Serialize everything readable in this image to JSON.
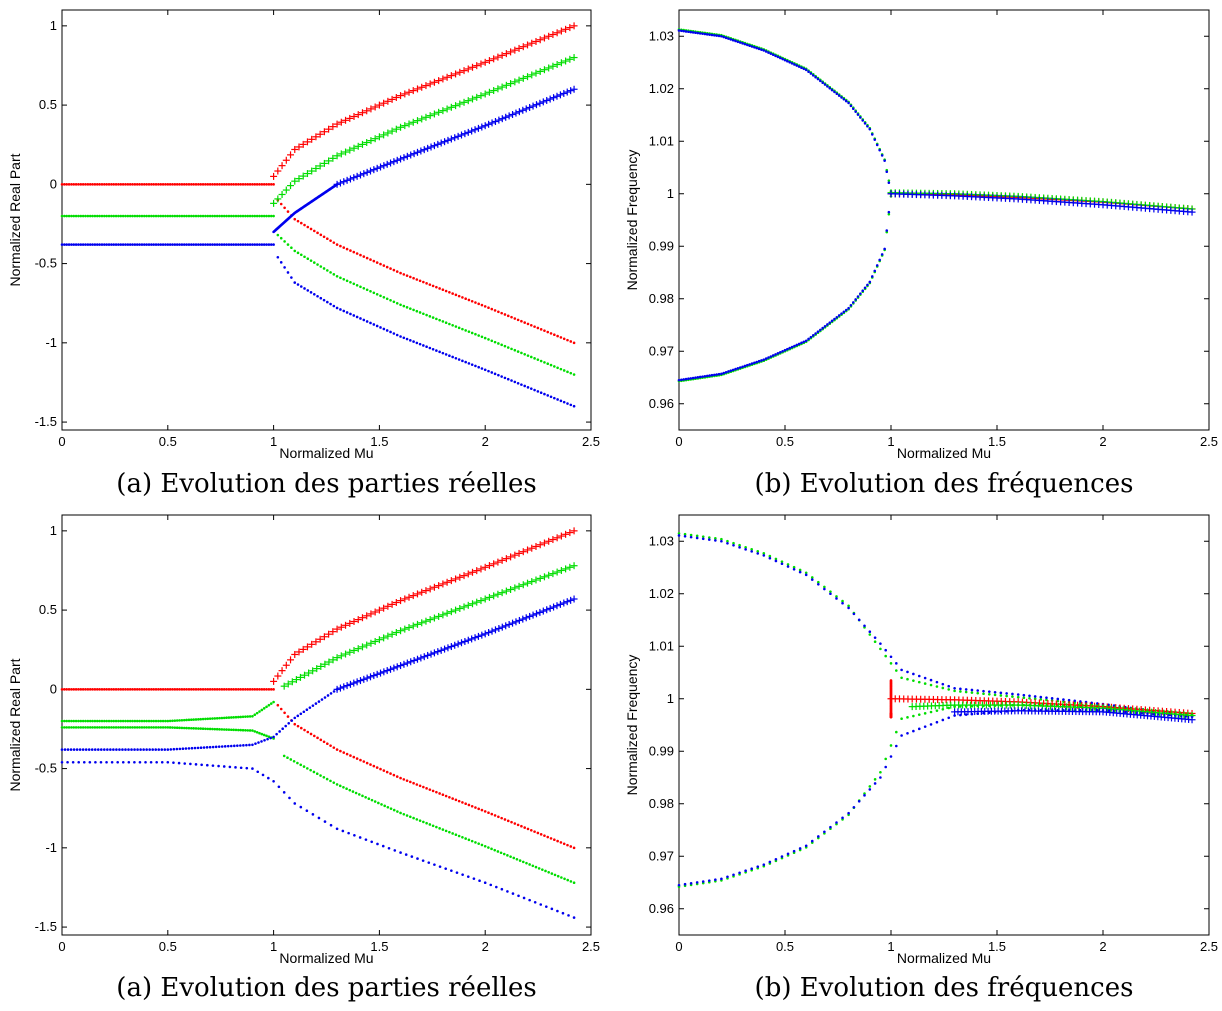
{
  "chart_data": [
    {
      "type": "scatter",
      "caption": "(a) Evolution des parties réelles",
      "xlabel": "Normalized Mu",
      "ylabel": "Normalized Real Part",
      "xlim": [
        0,
        2.5
      ],
      "ylim": [
        -1.55,
        1.1
      ],
      "xticks": [
        0,
        0.5,
        1,
        1.5,
        2,
        2.5
      ],
      "xtick_labels": [
        "0",
        "0.5",
        "1",
        "1.5",
        "2",
        "2.5"
      ],
      "yticks": [
        -1.5,
        -1,
        -0.5,
        0,
        0.5,
        1
      ],
      "ytick_labels": [
        "-1.5",
        "-1",
        "-0.5",
        "0",
        "0.5",
        "1"
      ],
      "grid": false,
      "series": [
        {
          "color": "#ff0000",
          "branches": [
            {
              "marker": "dot",
              "x": [
                0,
                0.5,
                1.0
              ],
              "y": [
                0,
                0,
                0
              ]
            },
            {
              "marker": "plus",
              "x": [
                1.0,
                1.1,
                1.3,
                1.6,
                2.0,
                2.42
              ],
              "y": [
                0.05,
                0.22,
                0.38,
                0.56,
                0.77,
                1.0
              ]
            },
            {
              "marker": "dot",
              "x": [
                1.02,
                1.1,
                1.3,
                1.6,
                2.0,
                2.42
              ],
              "y": [
                -0.1,
                -0.22,
                -0.38,
                -0.56,
                -0.77,
                -1.0
              ]
            }
          ]
        },
        {
          "color": "#00dd00",
          "branches": [
            {
              "marker": "dot",
              "x": [
                0,
                0.5,
                1.0
              ],
              "y": [
                -0.2,
                -0.2,
                -0.2
              ]
            },
            {
              "marker": "plus",
              "x": [
                1.0,
                1.1,
                1.3,
                1.6,
                2.0,
                2.42
              ],
              "y": [
                -0.12,
                0.02,
                0.18,
                0.36,
                0.57,
                0.8
              ]
            },
            {
              "marker": "dot",
              "x": [
                1.02,
                1.1,
                1.3,
                1.6,
                2.0,
                2.42
              ],
              "y": [
                -0.32,
                -0.42,
                -0.58,
                -0.76,
                -0.97,
                -1.2
              ]
            }
          ]
        },
        {
          "color": "#0000ee",
          "branches": [
            {
              "marker": "dot",
              "x": [
                0,
                0.5,
                1.0
              ],
              "y": [
                -0.38,
                -0.38,
                -0.38
              ]
            },
            {
              "marker": "dot",
              "x": [
                1.0,
                1.1,
                1.3
              ],
              "y": [
                -0.3,
                -0.18,
                0.0
              ]
            },
            {
              "marker": "plus",
              "x": [
                1.3,
                1.6,
                2.0,
                2.42
              ],
              "y": [
                0.0,
                0.16,
                0.37,
                0.6
              ]
            },
            {
              "marker": "dot",
              "x": [
                1.02,
                1.1,
                1.3,
                1.6,
                2.0,
                2.42
              ],
              "y": [
                -0.46,
                -0.62,
                -0.78,
                -0.96,
                -1.17,
                -1.4
              ]
            }
          ]
        }
      ]
    },
    {
      "type": "scatter",
      "caption": "(b) Evolution des fréquences",
      "xlabel": "Normalized Mu",
      "ylabel": "Normalized Frequency",
      "xlim": [
        0,
        2.5
      ],
      "ylim": [
        0.955,
        1.035
      ],
      "xticks": [
        0,
        0.5,
        1,
        1.5,
        2,
        2.5
      ],
      "xtick_labels": [
        "0",
        "0.5",
        "1",
        "1.5",
        "2",
        "2.5"
      ],
      "yticks": [
        0.96,
        0.97,
        0.98,
        0.99,
        1.0,
        1.01,
        1.02,
        1.03
      ],
      "ytick_labels": [
        "0.96",
        "0.97",
        "0.98",
        "0.99",
        "1",
        "1.01",
        "1.02",
        "1.03"
      ],
      "grid": false,
      "series": [
        {
          "color": "#00dd00",
          "branches": [
            {
              "marker": "dot",
              "x": [
                0,
                0.2,
                0.4,
                0.6,
                0.8,
                0.9,
                0.97,
                1.0
              ],
              "y": [
                1.0313,
                1.0302,
                1.0275,
                1.0238,
                1.0175,
                1.0125,
                1.0065,
                1.0005
              ]
            },
            {
              "marker": "dot",
              "x": [
                0,
                0.2,
                0.4,
                0.6,
                0.8,
                0.9,
                0.97,
                1.0
              ],
              "y": [
                0.9643,
                0.9655,
                0.9682,
                0.9718,
                0.978,
                0.983,
                0.9893,
                0.9995
              ]
            }
          ]
        },
        {
          "color": "#0000ee",
          "branches": [
            {
              "marker": "dot",
              "x": [
                0,
                0.2,
                0.4,
                0.6,
                0.8,
                0.9,
                0.97,
                1.0
              ],
              "y": [
                1.0311,
                1.03,
                1.0273,
                1.0236,
                1.0173,
                1.0123,
                1.0063,
                1.0
              ]
            },
            {
              "marker": "dot",
              "x": [
                0,
                0.2,
                0.4,
                0.6,
                0.8,
                0.9,
                0.97,
                1.0
              ],
              "y": [
                0.9645,
                0.9657,
                0.9684,
                0.972,
                0.9782,
                0.9832,
                0.9895,
                1.0
              ]
            }
          ]
        },
        {
          "color": "#ff0000",
          "branches": [
            {
              "marker": "plus",
              "x": [
                1.0,
                1.3,
                1.6,
                2.0,
                2.42
              ],
              "y": [
                1.0,
                0.9998,
                0.9993,
                0.9984,
                0.9971
              ]
            }
          ]
        },
        {
          "color": "#00dd00",
          "branches": [
            {
              "marker": "plus",
              "x": [
                1.0,
                1.3,
                1.6,
                2.0,
                2.42
              ],
              "y": [
                1.0002,
                1.0,
                0.9995,
                0.9985,
                0.9971
              ]
            }
          ]
        },
        {
          "color": "#0000ee",
          "branches": [
            {
              "marker": "plus",
              "x": [
                1.0,
                1.3,
                1.6,
                2.0,
                2.42
              ],
              "y": [
                1.0,
                0.9996,
                0.999,
                0.9979,
                0.9965
              ]
            }
          ]
        }
      ]
    },
    {
      "type": "scatter",
      "caption": "(a) Evolution des parties réelles",
      "xlabel": "Normalized Mu",
      "ylabel": "Normalized Real Part",
      "xlim": [
        0,
        2.5
      ],
      "ylim": [
        -1.55,
        1.1
      ],
      "xticks": [
        0,
        0.5,
        1,
        1.5,
        2,
        2.5
      ],
      "xtick_labels": [
        "0",
        "0.5",
        "1",
        "1.5",
        "2",
        "2.5"
      ],
      "yticks": [
        -1.5,
        -1,
        -0.5,
        0,
        0.5,
        1
      ],
      "ytick_labels": [
        "-1.5",
        "-1",
        "-0.5",
        "0",
        "0.5",
        "1"
      ],
      "grid": false,
      "series": [
        {
          "color": "#ff0000",
          "branches": [
            {
              "marker": "dot",
              "x": [
                0,
                0.5,
                1.0
              ],
              "y": [
                0,
                0,
                0
              ]
            },
            {
              "marker": "plus",
              "x": [
                1.0,
                1.1,
                1.3,
                1.6,
                2.0,
                2.42
              ],
              "y": [
                0.05,
                0.22,
                0.38,
                0.56,
                0.77,
                1.0
              ]
            },
            {
              "marker": "dot",
              "x": [
                1.02,
                1.1,
                1.3,
                1.6,
                2.0,
                2.42
              ],
              "y": [
                -0.1,
                -0.22,
                -0.38,
                -0.56,
                -0.77,
                -1.0
              ]
            }
          ]
        },
        {
          "color": "#00dd00",
          "branches": [
            {
              "marker": "dot",
              "x": [
                0,
                0.5,
                0.9,
                1.0
              ],
              "y": [
                -0.2,
                -0.2,
                -0.17,
                -0.08
              ]
            },
            {
              "marker": "dot",
              "x": [
                0,
                0.5,
                0.9,
                1.0
              ],
              "y": [
                -0.24,
                -0.24,
                -0.26,
                -0.31
              ]
            },
            {
              "marker": "plus",
              "x": [
                1.05,
                1.3,
                1.6,
                2.0,
                2.42
              ],
              "y": [
                0.02,
                0.2,
                0.37,
                0.57,
                0.78
              ]
            },
            {
              "marker": "dot",
              "x": [
                1.05,
                1.3,
                1.6,
                2.0,
                2.42
              ],
              "y": [
                -0.42,
                -0.6,
                -0.78,
                -0.99,
                -1.22
              ]
            }
          ]
        },
        {
          "color": "#0000ee",
          "branches": [
            {
              "marker": "dot",
              "x": [
                0,
                0.5,
                0.9,
                1.0,
                1.1,
                1.3
              ],
              "y": [
                -0.38,
                -0.38,
                -0.35,
                -0.3,
                -0.18,
                0.0
              ]
            },
            {
              "marker": "plus",
              "x": [
                1.3,
                1.6,
                2.0,
                2.42
              ],
              "y": [
                0.0,
                0.15,
                0.35,
                0.57
              ]
            },
            {
              "marker": "dot",
              "x": [
                0,
                0.5,
                0.9,
                1.0,
                1.1,
                1.3,
                1.6,
                2.0,
                2.42
              ],
              "y": [
                -0.46,
                -0.46,
                -0.5,
                -0.58,
                -0.72,
                -0.88,
                -1.03,
                -1.22,
                -1.44
              ]
            }
          ]
        }
      ]
    },
    {
      "type": "scatter",
      "caption": "(b) Evolution des fréquences",
      "xlabel": "Normalized Mu",
      "ylabel": "Normalized Frequency",
      "xlim": [
        0,
        2.5
      ],
      "ylim": [
        0.955,
        1.035
      ],
      "xticks": [
        0,
        0.5,
        1,
        1.5,
        2,
        2.5
      ],
      "xtick_labels": [
        "0",
        "0.5",
        "1",
        "1.5",
        "2",
        "2.5"
      ],
      "yticks": [
        0.96,
        0.97,
        0.98,
        0.99,
        1.0,
        1.01,
        1.02,
        1.03
      ],
      "ytick_labels": [
        "0.96",
        "0.97",
        "0.98",
        "0.99",
        "1",
        "1.01",
        "1.02",
        "1.03"
      ],
      "grid": false,
      "series": [
        {
          "color": "#00dd00",
          "branches": [
            {
              "marker": "dot",
              "x": [
                0,
                0.2,
                0.4,
                0.6,
                0.8,
                0.95,
                1.05,
                1.3,
                1.6,
                2.0,
                2.42
              ],
              "y": [
                1.0315,
                1.0304,
                1.0277,
                1.024,
                1.0177,
                1.0095,
                1.004,
                1.0015,
                1.0003,
                0.9987,
                0.997
              ]
            },
            {
              "marker": "dot",
              "x": [
                0,
                0.2,
                0.4,
                0.6,
                0.8,
                0.95,
                1.05,
                1.3,
                1.6,
                2.0,
                2.42
              ],
              "y": [
                0.9642,
                0.9654,
                0.9681,
                0.9717,
                0.9779,
                0.986,
                0.9962,
                0.9985,
                0.9988,
                0.9985,
                0.997
              ]
            }
          ]
        },
        {
          "color": "#0000ee",
          "branches": [
            {
              "marker": "dot",
              "x": [
                0,
                0.2,
                0.4,
                0.6,
                0.8,
                0.95,
                1.05,
                1.3,
                1.6,
                2.0,
                2.42
              ],
              "y": [
                1.0311,
                1.03,
                1.0273,
                1.0236,
                1.0173,
                1.0105,
                1.0055,
                1.002,
                1.0008,
                0.999,
                0.9966
              ]
            },
            {
              "marker": "dot",
              "x": [
                0,
                0.2,
                0.4,
                0.6,
                0.8,
                0.95,
                1.05,
                1.3,
                1.6,
                2.0,
                2.42
              ],
              "y": [
                0.9645,
                0.9657,
                0.9684,
                0.972,
                0.9782,
                0.985,
                0.993,
                0.9968,
                0.9978,
                0.9978,
                0.9966
              ]
            }
          ]
        },
        {
          "color": "#ff0000",
          "branches": [
            {
              "marker": "plus",
              "x": [
                1.0,
                1.3,
                1.6,
                2.0,
                2.42
              ],
              "y": [
                1.0,
                0.9998,
                0.9994,
                0.9985,
                0.9972
              ]
            },
            {
              "marker": "dot",
              "x": [
                1.0,
                1.0,
                1.0
              ],
              "y": [
                0.9972,
                0.9965,
                1.0035
              ]
            }
          ]
        },
        {
          "color": "#00dd00",
          "branches": [
            {
              "marker": "plus",
              "x": [
                1.1,
                1.3,
                1.6,
                2.0,
                2.42
              ],
              "y": [
                0.9985,
                0.9988,
                0.9988,
                0.9982,
                0.9968
              ]
            }
          ]
        },
        {
          "color": "#0000ee",
          "branches": [
            {
              "marker": "plus",
              "x": [
                1.3,
                1.6,
                2.0,
                2.42
              ],
              "y": [
                0.9975,
                0.9977,
                0.9975,
                0.996
              ]
            }
          ]
        }
      ]
    }
  ]
}
